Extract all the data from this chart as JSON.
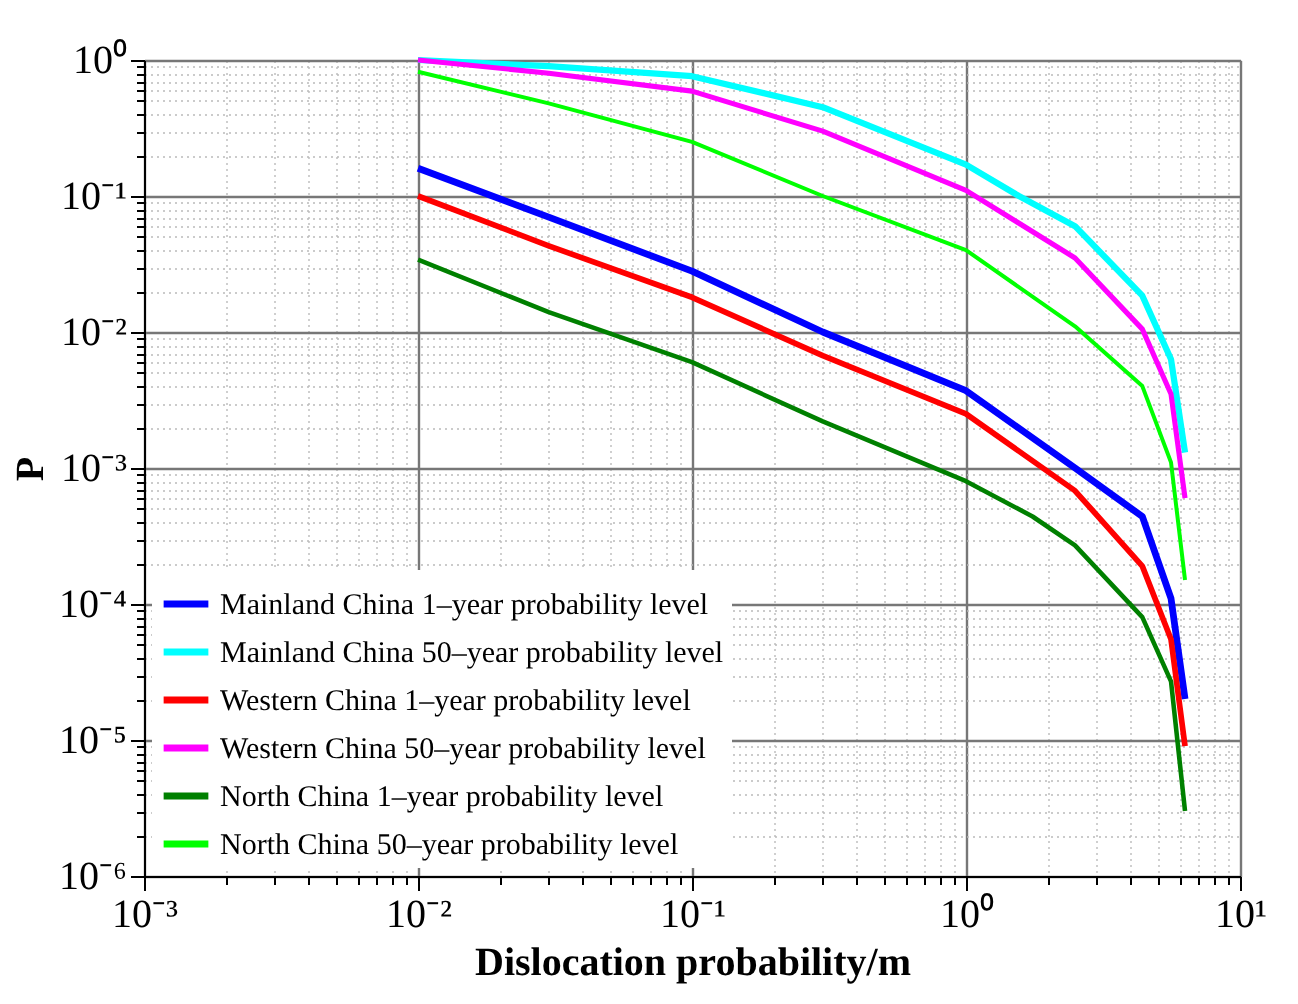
{
  "chart_data": {
    "type": "line",
    "xlabel": "Dislocation probability/m",
    "ylabel": "P",
    "log": "xy",
    "grid": true,
    "legend": "bottom left",
    "line_style": "solid",
    "marker": "none",
    "xlim": [
      0.001,
      10
    ],
    "ylim": [
      1e-06,
      1
    ],
    "xticks": [
      {
        "value": 0.001,
        "label": "10⁻³"
      },
      {
        "value": 0.002,
        "label": null
      },
      {
        "value": 0.003,
        "label": null
      },
      {
        "value": 0.004,
        "label": null
      },
      {
        "value": 0.005,
        "label": null
      },
      {
        "value": 0.006,
        "label": null
      },
      {
        "value": 0.007,
        "label": null
      },
      {
        "value": 0.008,
        "label": null
      },
      {
        "value": 0.009,
        "label": null
      },
      {
        "value": 0.01,
        "label": "10⁻²"
      },
      {
        "value": 0.02,
        "label": null
      },
      {
        "value": 0.03,
        "label": null
      },
      {
        "value": 0.04,
        "label": null
      },
      {
        "value": 0.05,
        "label": null
      },
      {
        "value": 0.06,
        "label": null
      },
      {
        "value": 0.07,
        "label": null
      },
      {
        "value": 0.08,
        "label": null
      },
      {
        "value": 0.09,
        "label": null
      },
      {
        "value": 0.1,
        "label": "10⁻¹"
      },
      {
        "value": 0.2,
        "label": null
      },
      {
        "value": 0.3,
        "label": null
      },
      {
        "value": 0.4,
        "label": null
      },
      {
        "value": 0.5,
        "label": null
      },
      {
        "value": 0.6,
        "label": null
      },
      {
        "value": 0.7,
        "label": null
      },
      {
        "value": 0.8,
        "label": null
      },
      {
        "value": 0.9,
        "label": null
      },
      {
        "value": 1,
        "label": "10⁰"
      },
      {
        "value": 2,
        "label": null
      },
      {
        "value": 3,
        "label": null
      },
      {
        "value": 4,
        "label": null
      },
      {
        "value": 5,
        "label": null
      },
      {
        "value": 6,
        "label": null
      },
      {
        "value": 7,
        "label": null
      },
      {
        "value": 8,
        "label": null
      },
      {
        "value": 9,
        "label": null
      },
      {
        "value": 10,
        "label": "10¹"
      }
    ],
    "yticks": [
      {
        "value": 1e-06,
        "label": "10⁻⁶"
      },
      {
        "value": 2e-06,
        "label": null
      },
      {
        "value": 3e-06,
        "label": null
      },
      {
        "value": 4e-06,
        "label": null
      },
      {
        "value": 5e-06,
        "label": null
      },
      {
        "value": 6e-06,
        "label": null
      },
      {
        "value": 7e-06,
        "label": null
      },
      {
        "value": 8e-06,
        "label": null
      },
      {
        "value": 9e-06,
        "label": null
      },
      {
        "value": 1e-05,
        "label": "10⁻⁵"
      },
      {
        "value": 2e-05,
        "label": null
      },
      {
        "value": 3e-05,
        "label": null
      },
      {
        "value": 4e-05,
        "label": null
      },
      {
        "value": 5e-05,
        "label": null
      },
      {
        "value": 6e-05,
        "label": null
      },
      {
        "value": 7e-05,
        "label": null
      },
      {
        "value": 8e-05,
        "label": null
      },
      {
        "value": 9e-05,
        "label": null
      },
      {
        "value": 0.0001,
        "label": "10⁻⁴"
      },
      {
        "value": 0.0002,
        "label": null
      },
      {
        "value": 0.0003,
        "label": null
      },
      {
        "value": 0.0004,
        "label": null
      },
      {
        "value": 0.0005,
        "label": null
      },
      {
        "value": 0.0006,
        "label": null
      },
      {
        "value": 0.0007,
        "label": null
      },
      {
        "value": 0.0008,
        "label": null
      },
      {
        "value": 0.0009,
        "label": null
      },
      {
        "value": 0.001,
        "label": "10⁻³"
      },
      {
        "value": 0.002,
        "label": null
      },
      {
        "value": 0.003,
        "label": null
      },
      {
        "value": 0.004,
        "label": null
      },
      {
        "value": 0.005,
        "label": null
      },
      {
        "value": 0.006,
        "label": null
      },
      {
        "value": 0.007,
        "label": null
      },
      {
        "value": 0.008,
        "label": null
      },
      {
        "value": 0.009,
        "label": null
      },
      {
        "value": 0.01,
        "label": "10⁻²"
      },
      {
        "value": 0.02,
        "label": null
      },
      {
        "value": 0.03,
        "label": null
      },
      {
        "value": 0.04,
        "label": null
      },
      {
        "value": 0.05,
        "label": null
      },
      {
        "value": 0.06,
        "label": null
      },
      {
        "value": 0.07,
        "label": null
      },
      {
        "value": 0.08,
        "label": null
      },
      {
        "value": 0.09,
        "label": null
      },
      {
        "value": 0.1,
        "label": "10⁻¹"
      },
      {
        "value": 0.2,
        "label": null
      },
      {
        "value": 0.3,
        "label": null
      },
      {
        "value": 0.4,
        "label": null
      },
      {
        "value": 0.5,
        "label": null
      },
      {
        "value": 0.6,
        "label": null
      },
      {
        "value": 0.7,
        "label": null
      },
      {
        "value": 0.8,
        "label": null
      },
      {
        "value": 0.9,
        "label": null
      },
      {
        "value": 1,
        "label": "10⁰"
      }
    ],
    "series": [
      {
        "name": "Mainland China 1–year probability level",
        "color": "#0000ff",
        "x": [
          0.01,
          0.03,
          0.1,
          0.3,
          1,
          2.5,
          4.4,
          5.6,
          6.3
        ],
        "values": [
          0.16,
          0.07,
          0.028,
          0.01,
          0.0037,
          0.001,
          0.00044,
          0.00011,
          2e-05
        ]
      },
      {
        "name": "Mainland China 50–year probability level",
        "color": "#00ffff",
        "x": [
          0.01,
          0.03,
          0.1,
          0.3,
          1,
          1.56,
          2.5,
          4.4,
          5.6,
          6.3
        ],
        "values": [
          1,
          0.9,
          0.76,
          0.45,
          0.17,
          0.1,
          0.06,
          0.0185,
          0.0063,
          0.0013
        ]
      },
      {
        "name": "Western China 1–year probability level",
        "color": "#ff0000",
        "x": [
          0.01,
          0.03,
          0.1,
          0.3,
          1,
          2.5,
          4.4,
          5.6,
          6.3
        ],
        "values": [
          0.1,
          0.043,
          0.018,
          0.0067,
          0.0025,
          0.00068,
          0.00019,
          5.5e-05,
          9e-06
        ]
      },
      {
        "name": "Western China 50–year probability level",
        "color": "#ff00ff",
        "x": [
          0.01,
          0.03,
          0.1,
          0.3,
          1,
          2.5,
          4.4,
          5.6,
          6.3
        ],
        "values": [
          1,
          0.8,
          0.59,
          0.3,
          0.11,
          0.035,
          0.0105,
          0.0035,
          0.0006
        ]
      },
      {
        "name": "North China 1–year probability level",
        "color": "#008000",
        "x": [
          0.01,
          0.03,
          0.1,
          0.3,
          1,
          1.75,
          2.5,
          4.4,
          5.6,
          6.3
        ],
        "values": [
          0.034,
          0.014,
          0.006,
          0.0022,
          0.0008,
          0.00044,
          0.00027,
          8e-05,
          2.7e-05,
          3e-06
        ]
      },
      {
        "name": "North China 50–year probability level",
        "color": "#00ff00",
        "x": [
          0.01,
          0.03,
          0.1,
          0.3,
          1,
          2.5,
          4.4,
          5.6,
          6.3
        ],
        "values": [
          0.82,
          0.48,
          0.25,
          0.1,
          0.04,
          0.011,
          0.004,
          0.0011,
          0.00015
        ]
      }
    ]
  }
}
